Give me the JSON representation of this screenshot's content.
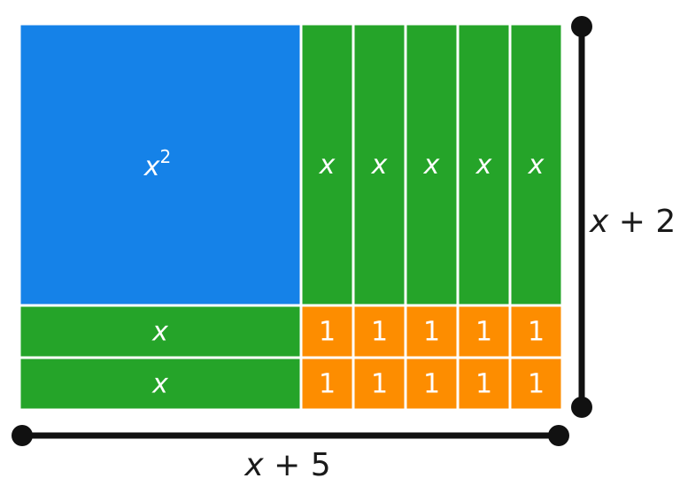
{
  "colors": {
    "x_squared_tile": "#1582e8",
    "x_tile": "#25a429",
    "unit_tile": "#fd8d00",
    "tile_border": "#ffffff",
    "dimension_line": "#111111",
    "text": "#ffffff"
  },
  "tiles": {
    "x_squared": {
      "label": "x",
      "exponent": "2"
    },
    "x_label": "x",
    "unit_label": "1",
    "x_tile_columns": 5,
    "x_tile_rows": 2
  },
  "dimensions": {
    "width": {
      "variable": "x",
      "rest": " + 5"
    },
    "height": {
      "variable": "x",
      "rest": " + 2"
    }
  }
}
